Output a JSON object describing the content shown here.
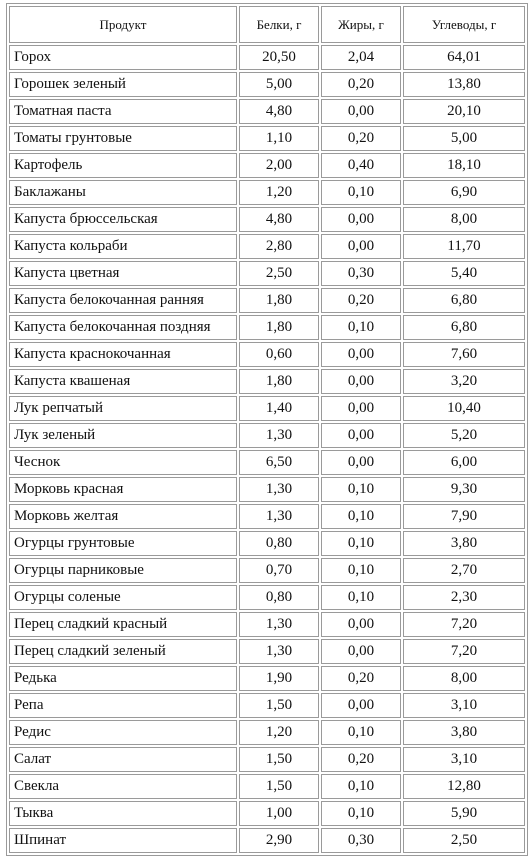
{
  "table": {
    "headers": [
      "Продукт",
      "Белки, г",
      "Жиры, г",
      "Углеводы, г"
    ],
    "rows": [
      [
        "Горох",
        "20,50",
        "2,04",
        "64,01"
      ],
      [
        "Горошек зеленый",
        "5,00",
        "0,20",
        "13,80"
      ],
      [
        "Томатная паста",
        "4,80",
        "0,00",
        "20,10"
      ],
      [
        "Томаты грунтовые",
        "1,10",
        "0,20",
        "5,00"
      ],
      [
        "Картофель",
        "2,00",
        "0,40",
        "18,10"
      ],
      [
        "Баклажаны",
        "1,20",
        "0,10",
        "6,90"
      ],
      [
        "Капуста брюссельская",
        "4,80",
        "0,00",
        "8,00"
      ],
      [
        "Капуста кольраби",
        "2,80",
        "0,00",
        "11,70"
      ],
      [
        "Капуста цветная",
        "2,50",
        "0,30",
        "5,40"
      ],
      [
        "Капуста белокочанная ранняя",
        "1,80",
        "0,20",
        "6,80"
      ],
      [
        "Капуста белокочанная поздняя",
        "1,80",
        "0,10",
        "6,80"
      ],
      [
        "Капуста краснокочанная",
        "0,60",
        "0,00",
        "7,60"
      ],
      [
        "Капуста квашеная",
        "1,80",
        "0,00",
        "3,20"
      ],
      [
        "Лук репчатый",
        "1,40",
        "0,00",
        "10,40"
      ],
      [
        "Лук зеленый",
        "1,30",
        "0,00",
        "5,20"
      ],
      [
        "Чеснок",
        "6,50",
        "0,00",
        "6,00"
      ],
      [
        "Морковь красная",
        "1,30",
        "0,10",
        "9,30"
      ],
      [
        "Морковь желтая",
        "1,30",
        "0,10",
        "7,90"
      ],
      [
        "Огурцы грунтовые",
        "0,80",
        "0,10",
        "3,80"
      ],
      [
        "Огурцы парниковые",
        "0,70",
        "0,10",
        "2,70"
      ],
      [
        "Огурцы соленые",
        "0,80",
        "0,10",
        "2,30"
      ],
      [
        "Перец сладкий красный",
        "1,30",
        "0,00",
        "7,20"
      ],
      [
        "Перец сладкий зеленый",
        "1,30",
        "0,00",
        "7,20"
      ],
      [
        "Редька",
        "1,90",
        "0,20",
        "8,00"
      ],
      [
        "Репа",
        "1,50",
        "0,00",
        "3,10"
      ],
      [
        "Редис",
        "1,20",
        "0,10",
        "3,80"
      ],
      [
        "Салат",
        "1,50",
        "0,20",
        "3,10"
      ],
      [
        "Свекла",
        "1,50",
        "0,10",
        "12,80"
      ],
      [
        "Тыква",
        "1,00",
        "0,10",
        "5,90"
      ],
      [
        "Шпинат",
        "2,90",
        "0,30",
        "2,50"
      ]
    ]
  }
}
